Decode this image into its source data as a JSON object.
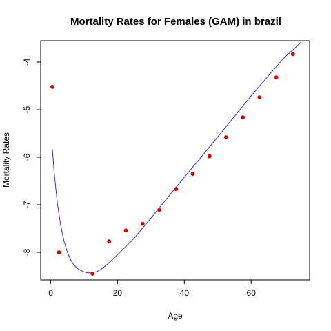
{
  "chart_data": {
    "type": "scatter",
    "title": "Mortality Rates for Females (GAM) in brazil",
    "xlabel": "Age",
    "ylabel": "Mortality Rates",
    "xlim": [
      -3,
      77.5
    ],
    "ylim": [
      -8.58,
      -3.55
    ],
    "x_ticks": [
      0,
      20,
      40,
      60
    ],
    "x_tick_labels": [
      "0",
      "20",
      "40",
      "60"
    ],
    "y_ticks": [
      -8,
      -7,
      -6,
      -5,
      -4
    ],
    "y_tick_labels": [
      "-8",
      "-7",
      "-6",
      "-5",
      "-4"
    ],
    "grid": false,
    "legend": "none",
    "points": {
      "name": "",
      "color": "#e00000",
      "x": [
        0.5,
        2.5,
        12.5,
        17.5,
        22.5,
        27.5,
        32.5,
        37.5,
        42.5,
        47.5,
        52.5,
        57.5,
        62.5,
        67.5,
        72.5
      ],
      "y": [
        -4.52,
        -8.0,
        -8.45,
        -7.77,
        -7.54,
        -7.4,
        -7.11,
        -6.67,
        -6.35,
        -5.98,
        -5.58,
        -5.16,
        -4.74,
        -4.32,
        -3.83
      ]
    },
    "fitted_curve": {
      "name": "",
      "color": "#3030d0",
      "x": [
        0.5,
        1,
        2,
        3,
        4,
        5,
        6,
        7,
        8,
        9,
        10,
        11,
        12,
        13,
        14,
        15,
        17,
        20,
        25,
        30,
        35,
        40,
        45,
        50,
        55,
        60,
        65,
        70,
        75
      ],
      "y": [
        -5.83,
        -6.3,
        -6.97,
        -7.44,
        -7.77,
        -8.0,
        -8.16,
        -8.27,
        -8.34,
        -8.38,
        -8.41,
        -8.43,
        -8.43,
        -8.42,
        -8.4,
        -8.36,
        -8.25,
        -8.05,
        -7.7,
        -7.28,
        -6.85,
        -6.42,
        -6.0,
        -5.57,
        -5.14,
        -4.71,
        -4.3,
        -3.9,
        -3.58
      ]
    }
  }
}
